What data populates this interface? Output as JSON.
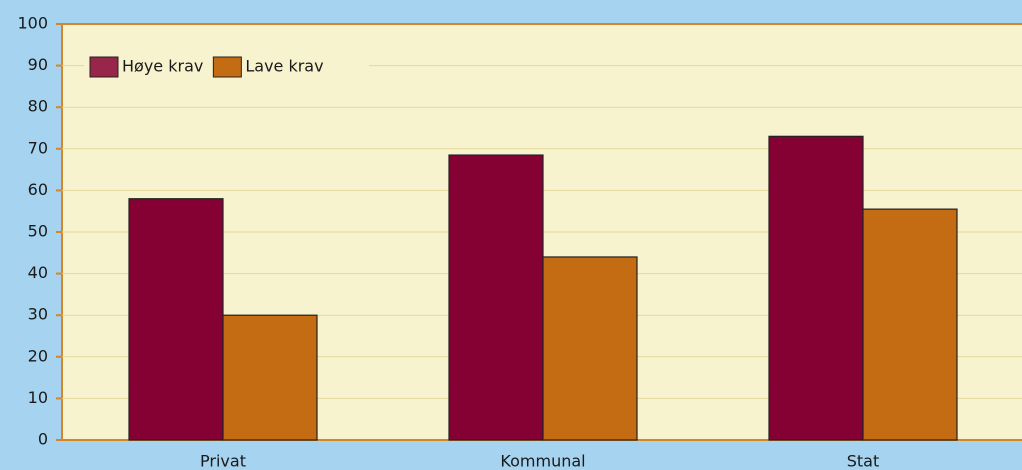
{
  "chart_data": {
    "type": "bar",
    "categories": [
      "Privat",
      "Kommunal",
      "Stat"
    ],
    "series": [
      {
        "name": "Høye krav",
        "color": "#850033",
        "values": [
          58,
          68.5,
          73
        ]
      },
      {
        "name": "Lave krav",
        "color": "#c46c14",
        "values": [
          30,
          44,
          55.5
        ]
      }
    ],
    "ylim": [
      0,
      100
    ],
    "yticks": [
      0,
      10,
      20,
      30,
      40,
      50,
      60,
      70,
      80,
      90,
      100
    ],
    "grid": true,
    "legend": "top-left"
  }
}
